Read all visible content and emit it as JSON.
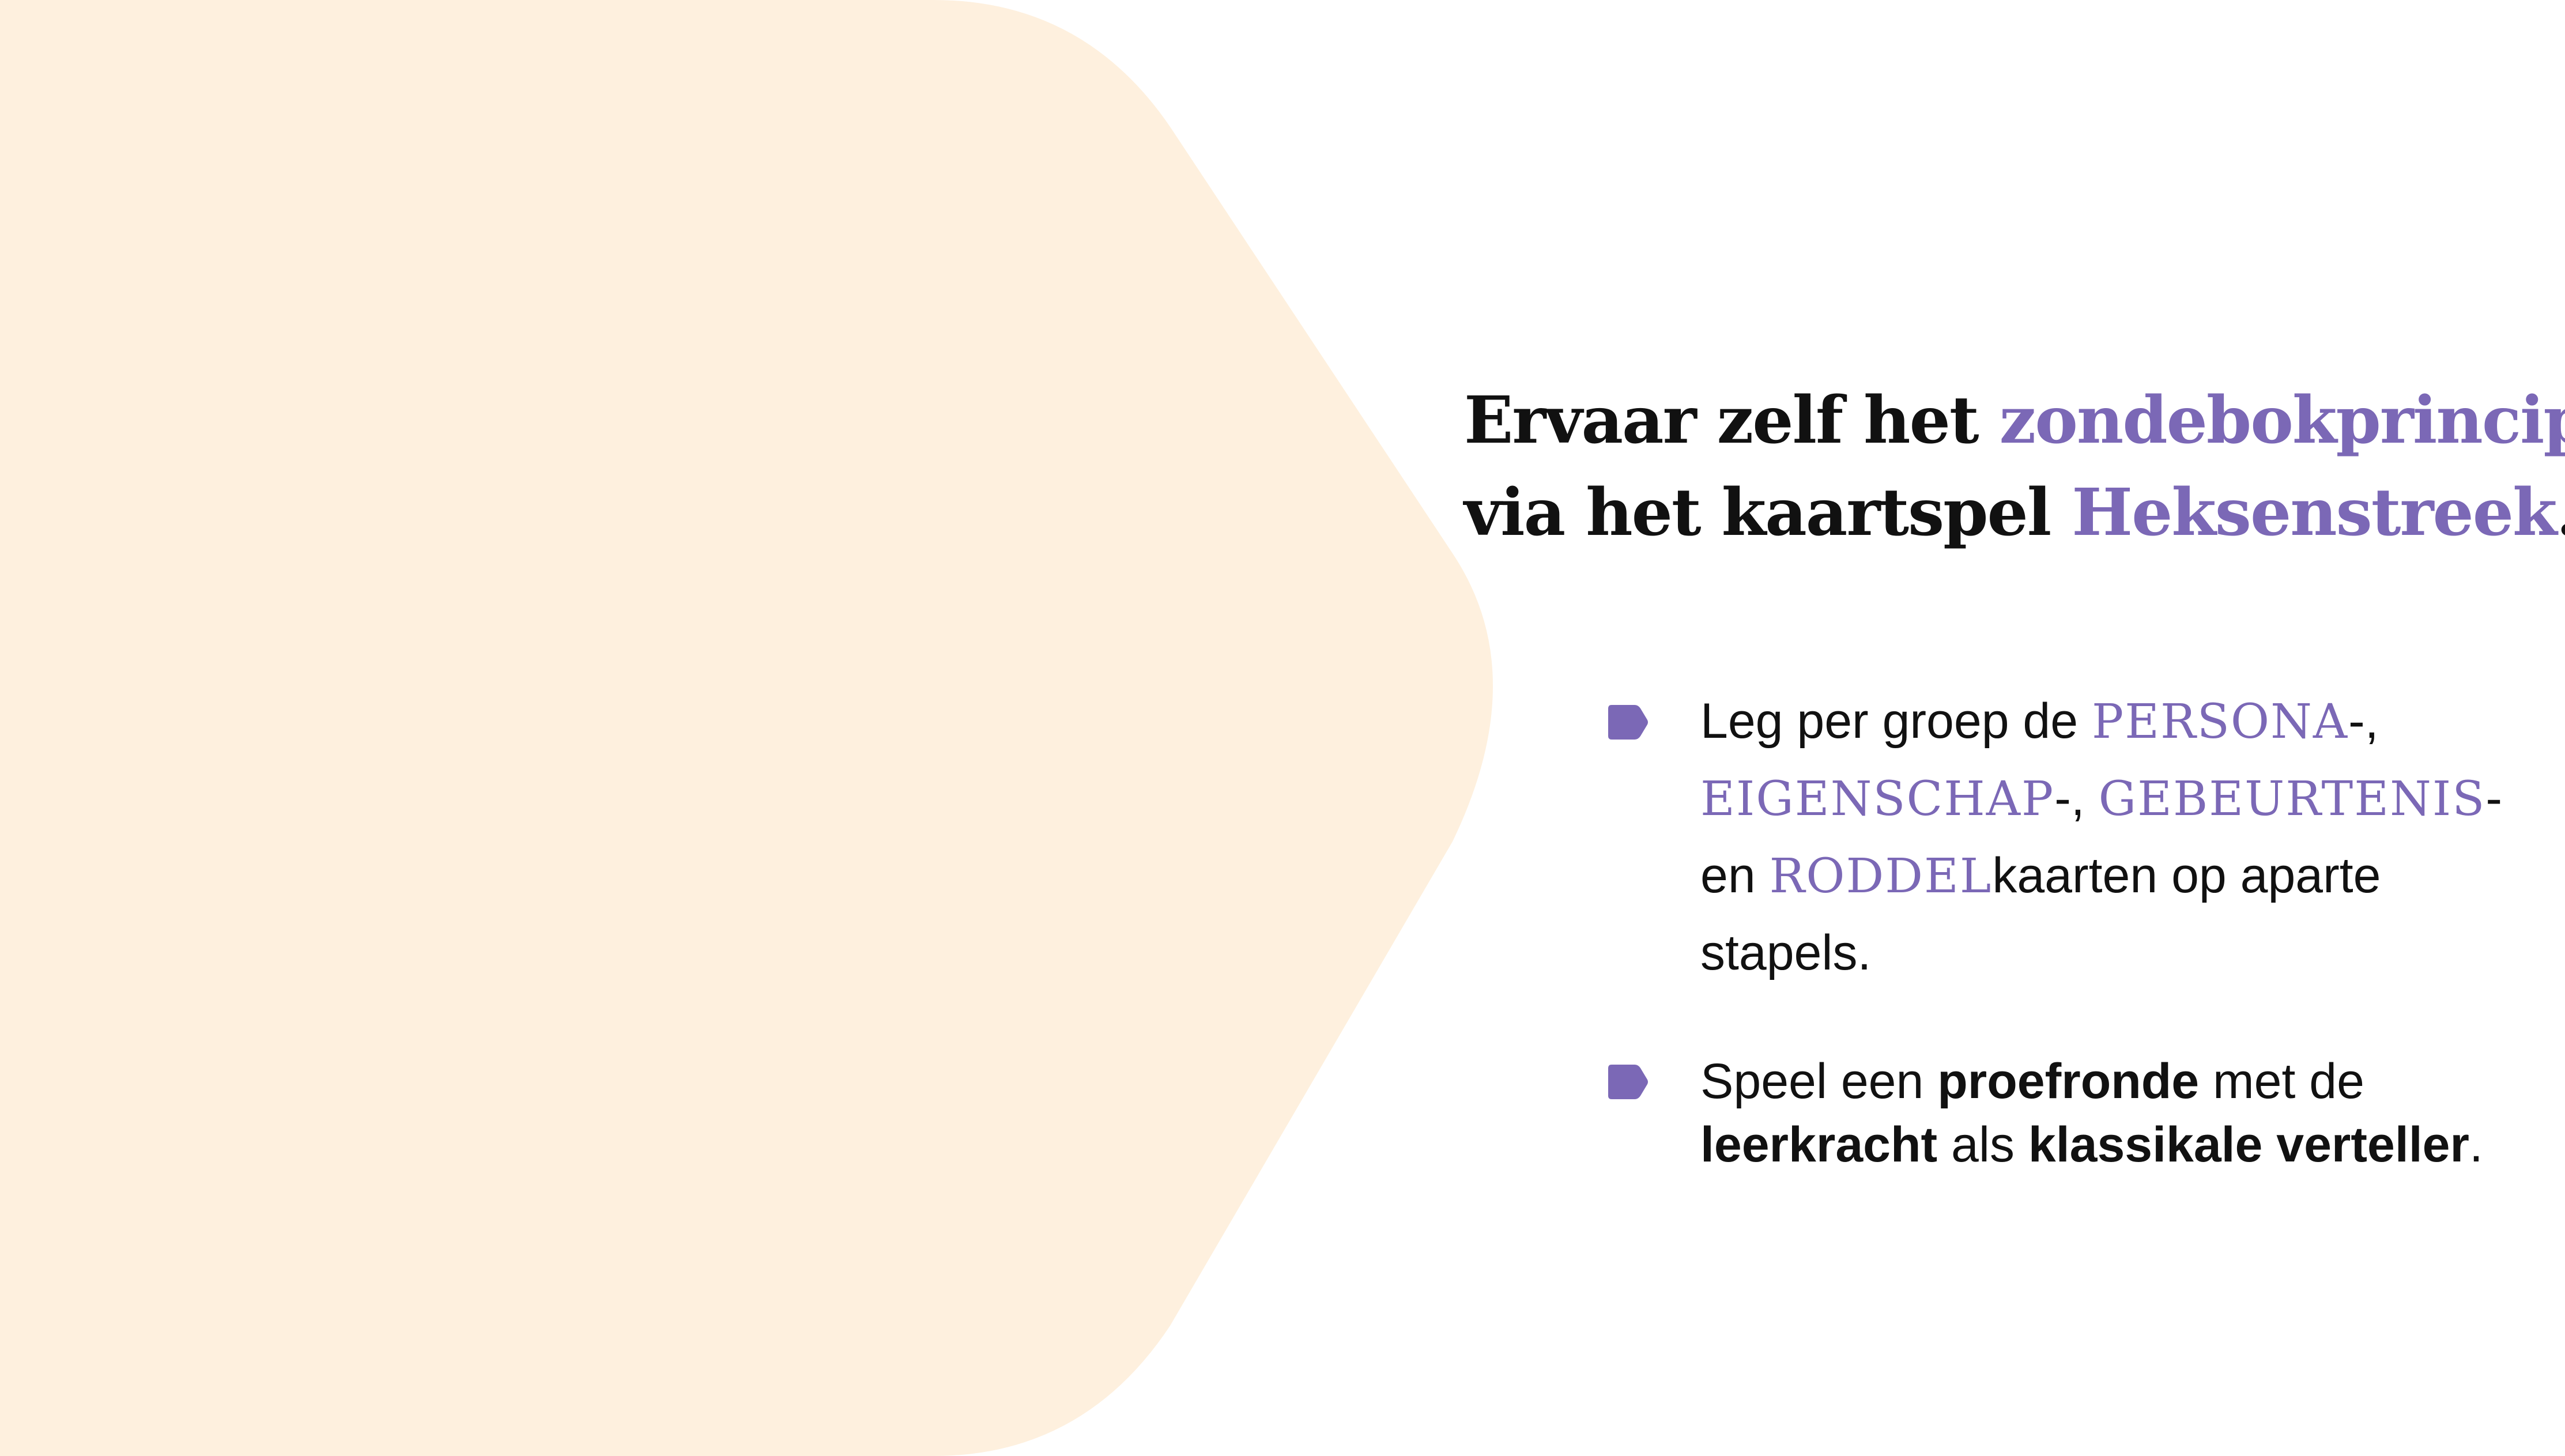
{
  "colors": {
    "hexagon_fill": "#fef0de",
    "accent": "#7b68b6",
    "text": "#111111",
    "background": "#ffffff"
  },
  "title": {
    "line1_prefix": "Ervaar zelf het ",
    "line1_accent": "zondebokprincipe",
    "line2_prefix": "via het kaartspel ",
    "line2_accent": "Heksenstreek",
    "line2_suffix": "."
  },
  "bullets": [
    {
      "icon": "tag-bullet-icon",
      "parts": {
        "t1": "Leg per groep de ",
        "card1": "PERSONA",
        "t2": "-,",
        "card2": "EIGENSCHAP",
        "t3": "-, ",
        "card3": "GEBEURTENIS",
        "t4": "-",
        "t5": "en ",
        "card4": "RODDEL",
        "t6": "kaarten op aparte",
        "t7": "stapels."
      }
    },
    {
      "icon": "tag-bullet-icon",
      "parts": {
        "t1": "Speel een ",
        "b1": "proefronde",
        "t2": " met de",
        "b2": "leerkracht",
        "t3": " als ",
        "b3": "klassikale verteller",
        "t4": "."
      }
    }
  ]
}
